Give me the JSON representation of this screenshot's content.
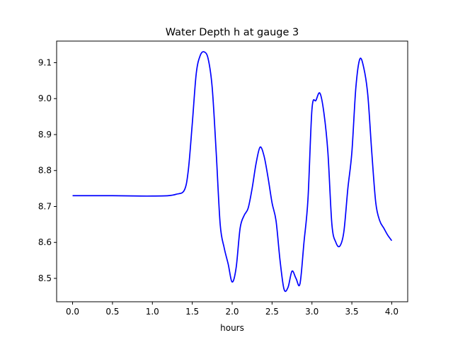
{
  "chart_data": {
    "type": "line",
    "title": "Water Depth h at gauge 3",
    "xlabel": "hours",
    "ylabel": "",
    "xlim": [
      -0.2,
      4.2
    ],
    "ylim": [
      8.435,
      9.16
    ],
    "xticks": [
      0.0,
      0.5,
      1.0,
      1.5,
      2.0,
      2.5,
      3.0,
      3.5,
      4.0
    ],
    "xtick_labels": [
      "0.0",
      "0.5",
      "1.0",
      "1.5",
      "2.0",
      "2.5",
      "3.0",
      "3.5",
      "4.0"
    ],
    "yticks": [
      8.5,
      8.6,
      8.7,
      8.8,
      8.9,
      9.0,
      9.1
    ],
    "ytick_labels": [
      "8.5",
      "8.6",
      "8.7",
      "8.8",
      "8.9",
      "9.0",
      "9.1"
    ],
    "grid": false,
    "series": [
      {
        "color": "#0000ff",
        "x": [
          0.0,
          0.5,
          0.85,
          1.0,
          1.2,
          1.3,
          1.4,
          1.45,
          1.5,
          1.55,
          1.6,
          1.65,
          1.7,
          1.75,
          1.8,
          1.85,
          1.9,
          1.95,
          2.0,
          2.05,
          2.1,
          2.15,
          2.2,
          2.25,
          2.3,
          2.35,
          2.4,
          2.45,
          2.5,
          2.55,
          2.6,
          2.65,
          2.7,
          2.75,
          2.8,
          2.85,
          2.9,
          2.95,
          3.0,
          3.05,
          3.1,
          3.15,
          3.2,
          3.25,
          3.3,
          3.35,
          3.4,
          3.45,
          3.5,
          3.55,
          3.6,
          3.65,
          3.7,
          3.75,
          3.8,
          3.85,
          3.9,
          3.95,
          4.0
        ],
        "y": [
          8.73,
          8.73,
          8.729,
          8.729,
          8.73,
          8.734,
          8.745,
          8.8,
          8.93,
          9.07,
          9.12,
          9.13,
          9.11,
          9.03,
          8.85,
          8.65,
          8.585,
          8.54,
          8.49,
          8.53,
          8.64,
          8.675,
          8.695,
          8.75,
          8.82,
          8.865,
          8.84,
          8.78,
          8.71,
          8.66,
          8.55,
          8.47,
          8.475,
          8.52,
          8.5,
          8.485,
          8.6,
          8.72,
          8.97,
          8.995,
          9.015,
          8.96,
          8.85,
          8.65,
          8.6,
          8.59,
          8.63,
          8.75,
          8.85,
          9.03,
          9.11,
          9.085,
          9.01,
          8.85,
          8.71,
          8.66,
          8.64,
          8.62,
          8.605
        ]
      }
    ]
  }
}
